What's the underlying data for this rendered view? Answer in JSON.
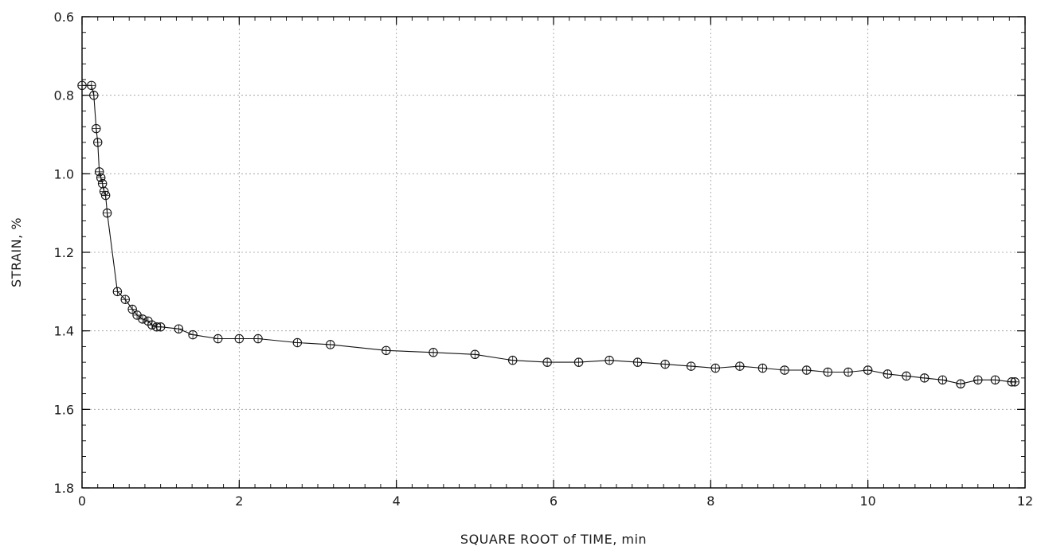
{
  "chart_data": {
    "type": "scatter",
    "title": "",
    "xlabel": "SQUARE ROOT of TIME, min",
    "ylabel": "STRAIN, %",
    "xlim": [
      0,
      12
    ],
    "ylim": [
      0.6,
      1.8
    ],
    "y_inverted": true,
    "grid": true,
    "legend": "none",
    "line_connected": true,
    "marker": "open-circle-with-crosshair",
    "x_ticks": [
      "0",
      "2",
      "4",
      "6",
      "8",
      "10",
      "12"
    ],
    "y_ticks": [
      "0.6",
      "0.8",
      "1.0",
      "1.2",
      "1.4",
      "1.6",
      "1.8"
    ],
    "series": [
      {
        "x": [
          0.0,
          0.12,
          0.15,
          0.18,
          0.2,
          0.22,
          0.24,
          0.26,
          0.28,
          0.3,
          0.32,
          0.45,
          0.55,
          0.64,
          0.7,
          0.77,
          0.84,
          0.89,
          0.95,
          1.0,
          1.23,
          1.41,
          1.73,
          2.0,
          2.24,
          2.74,
          3.16,
          3.87,
          4.47,
          5.0,
          5.48,
          5.92,
          6.32,
          6.71,
          7.07,
          7.42,
          7.75,
          8.06,
          8.37,
          8.66,
          8.94,
          9.22,
          9.49,
          9.75,
          10.0,
          10.25,
          10.49,
          10.72,
          10.95,
          11.18,
          11.4,
          11.62,
          11.83,
          11.87
        ],
        "y": [
          0.775,
          0.775,
          0.8,
          0.885,
          0.92,
          0.995,
          1.01,
          1.025,
          1.045,
          1.055,
          1.1,
          1.3,
          1.32,
          1.345,
          1.36,
          1.37,
          1.375,
          1.385,
          1.39,
          1.39,
          1.395,
          1.41,
          1.42,
          1.42,
          1.42,
          1.43,
          1.435,
          1.45,
          1.455,
          1.46,
          1.475,
          1.48,
          1.48,
          1.475,
          1.48,
          1.485,
          1.49,
          1.495,
          1.49,
          1.495,
          1.5,
          1.5,
          1.505,
          1.505,
          1.5,
          1.51,
          1.515,
          1.52,
          1.525,
          1.535,
          1.525,
          1.525,
          1.53,
          1.53
        ]
      }
    ]
  }
}
